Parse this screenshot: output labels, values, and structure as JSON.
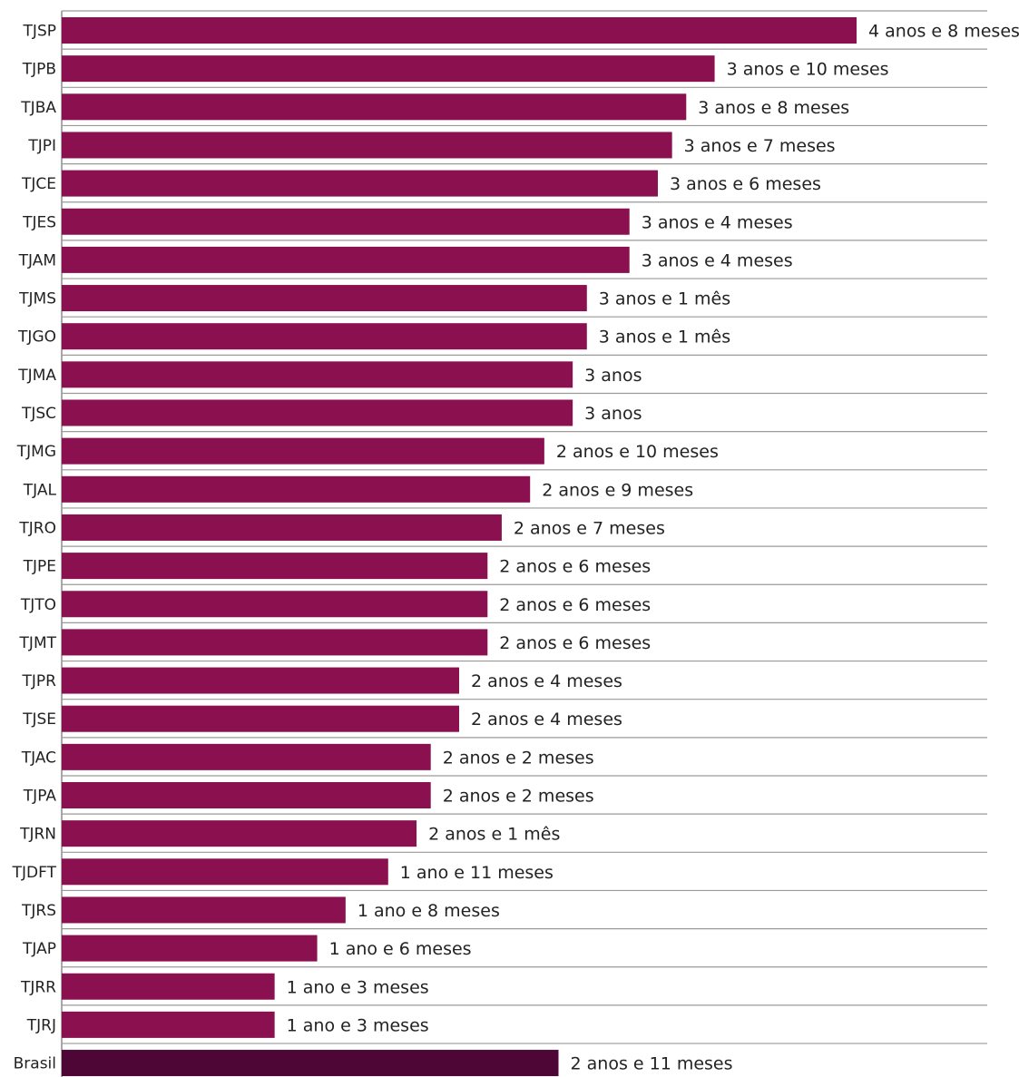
{
  "chart_data": {
    "type": "bar",
    "orientation": "horizontal",
    "title": "",
    "xlabel": "",
    "ylabel": "",
    "grid": false,
    "value_unit": "months",
    "categories": [
      "TJSP",
      "TJPB",
      "TJBA",
      "TJPI",
      "TJCE",
      "TJES",
      "TJAM",
      "TJMS",
      "TJGO",
      "TJMA",
      "TJSC",
      "TJMG",
      "TJAL",
      "TJRO",
      "TJPE",
      "TJTO",
      "TJMT",
      "TJPR",
      "TJSE",
      "TJAC",
      "TJPA",
      "TJRN",
      "TJDFT",
      "TJRS",
      "TJAP",
      "TJRR",
      "TJRJ",
      "Brasil"
    ],
    "values": [
      56,
      46,
      44,
      43,
      42,
      40,
      40,
      37,
      37,
      36,
      36,
      34,
      33,
      31,
      30,
      30,
      30,
      28,
      28,
      26,
      26,
      25,
      23,
      20,
      18,
      15,
      15,
      35
    ],
    "value_labels": [
      "4 anos e 8 meses",
      "3 anos e 10 meses",
      "3 anos e 8 meses",
      "3 anos e 7 meses",
      "3 anos e 6 meses",
      "3 anos e 4 meses",
      "3 anos e 4 meses",
      "3 anos e 1 mês",
      "3 anos e 1 mês",
      "3 anos",
      "3 anos",
      "2 anos e 10 meses",
      "2 anos e 9 meses",
      "2 anos e 7 meses",
      "2 anos e 6 meses",
      "2 anos e 6 meses",
      "2 anos e 6 meses",
      "2 anos e 4 meses",
      "2 anos e 4 meses",
      "2 anos e 2 meses",
      "2 anos e 2 meses",
      "2 anos e 1 mês",
      "1 ano e 11 meses",
      "1 ano e 8 meses",
      "1 ano e 6 meses",
      "1 ano e 3 meses",
      "1 ano e 3 meses",
      "2 anos e 11 meses"
    ],
    "colors": {
      "bar": "#8b1050",
      "highlight_bar": "#4d0635",
      "separator": "#9a9a9a",
      "axis": "#8c8c8c",
      "text": "#222222"
    },
    "highlight_category": "Brasil",
    "xlim": [
      0,
      56
    ]
  }
}
